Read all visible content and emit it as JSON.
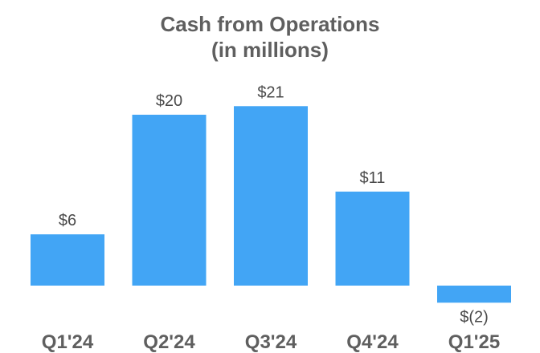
{
  "chart_data": {
    "type": "bar",
    "title_line1": "Cash from Operations",
    "title_line2": "(in millions)",
    "categories": [
      "Q1'24",
      "Q2'24",
      "Q3'24",
      "Q4'24",
      "Q1'25"
    ],
    "values": [
      6,
      20,
      21,
      11,
      -2
    ],
    "data_labels": [
      "$6",
      "$20",
      "$21",
      "$11",
      "$(2)"
    ],
    "bar_color": "#42a5f5",
    "grid": false,
    "legend": "none",
    "ylim": [
      -2,
      21
    ]
  }
}
